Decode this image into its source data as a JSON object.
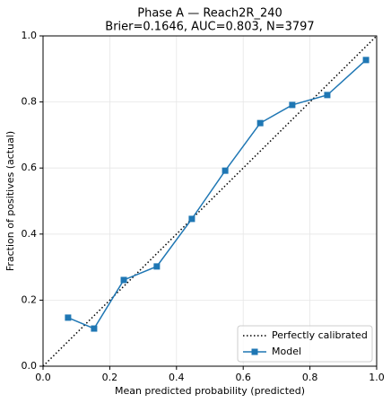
{
  "chart_data": {
    "type": "line",
    "title": "Phase A — Reach2R_240",
    "subtitle": "Brier=0.1646, AUC=0.803, N=3797",
    "x_label": "Mean predicted probability (predicted)",
    "y_label": "Fraction of positives (actual)",
    "xlim": [
      0,
      1
    ],
    "ylim": [
      0,
      1
    ],
    "xticks": [
      {
        "value": 0,
        "label": "0.0"
      },
      0.2,
      0.4,
      0.6,
      0.8,
      {
        "value": 1,
        "label": "1.0"
      }
    ],
    "yticks": [
      {
        "value": 0,
        "label": "0.0"
      },
      0.2,
      0.4,
      0.6,
      0.8,
      {
        "value": 1,
        "label": "1.0"
      }
    ],
    "grid": true,
    "legend": "lower right",
    "series": [
      {
        "name": "Perfectly calibrated",
        "color": "#000000",
        "style": "dotted",
        "x": [
          0,
          1
        ],
        "values": [
          0,
          1
        ]
      },
      {
        "name": "Model",
        "color": "#1f77b4",
        "marker": "square",
        "x": [
          0.075,
          0.153,
          0.242,
          0.341,
          0.446,
          0.546,
          0.651,
          0.747,
          0.852,
          0.968
        ],
        "values": [
          0.147,
          0.114,
          0.261,
          0.302,
          0.446,
          0.592,
          0.736,
          0.791,
          0.821,
          0.927
        ]
      }
    ]
  }
}
